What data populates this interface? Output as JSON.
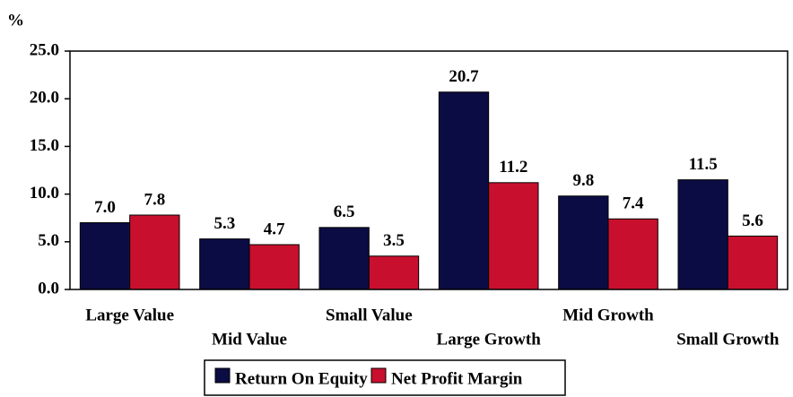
{
  "chart_data": {
    "type": "bar",
    "y_label": "%",
    "categories": [
      "Large Value",
      "Mid Value",
      "Small Value",
      "Large Growth",
      "Mid Growth",
      "Small Growth"
    ],
    "series": [
      {
        "name": "Return On Equity",
        "color": "#0c0c44",
        "values": [
          7.0,
          5.3,
          6.5,
          20.7,
          9.8,
          11.5
        ],
        "value_labels": [
          "7.0",
          "5.3",
          "6.5",
          "20.7",
          "9.8",
          "11.5"
        ]
      },
      {
        "name": "Net Profit Margin",
        "color": "#c8102e",
        "values": [
          7.8,
          4.7,
          3.5,
          11.2,
          7.4,
          5.6
        ],
        "value_labels": [
          "7.8",
          "4.7",
          "3.5",
          "11.2",
          "7.4",
          "5.6"
        ]
      }
    ],
    "ylim": [
      0,
      25
    ],
    "yticks": [
      {
        "value": 0,
        "label": "0.0"
      },
      {
        "value": 5,
        "label": "5.0"
      },
      {
        "value": 10,
        "label": "10.0"
      },
      {
        "value": 15,
        "label": "15.0"
      },
      {
        "value": 20,
        "label": "20.0"
      },
      {
        "value": 25,
        "label": "25.0"
      }
    ],
    "grid": false,
    "legend": "bottom"
  }
}
